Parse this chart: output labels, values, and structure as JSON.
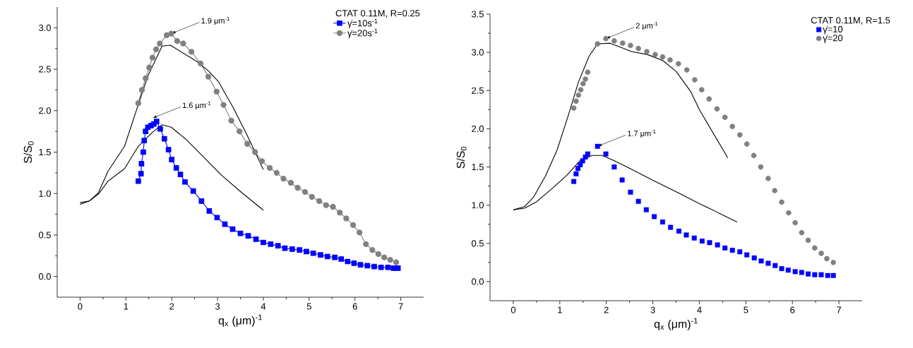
{
  "chart_data": [
    {
      "type": "line",
      "xlabel": "q$_{x}$ (μm)$^{-1}$",
      "ylabel": "S/S$_{0}$",
      "legend_title": "CTAT 0.11M, R=0.25",
      "legend": "top right",
      "grid": false,
      "line_style": "solid",
      "xlim": [
        -0.5,
        7.5
      ],
      "xticks": [
        0,
        1,
        2,
        3,
        4,
        5,
        6,
        7
      ],
      "ylim": [
        -0.25,
        3.25
      ],
      "yticks": [
        {
          "value": 0,
          "label": "0.0"
        },
        0.5,
        {
          "value": 1,
          "label": "1.0"
        },
        1.5,
        {
          "value": 2,
          "label": "2.0"
        },
        2.5,
        {
          "value": 3,
          "label": "3.0"
        }
      ],
      "annotations": [
        {
          "text": "1.9 μm$^{-1}$",
          "x": 1.99,
          "y": 2.93
        },
        {
          "text": "1.6 μm$^{-1}$",
          "x": 1.58,
          "y": 1.91
        }
      ],
      "series": [
        {
          "name": "γ̇=10s$^{-1}$",
          "color": "#0000ff",
          "marker": "square",
          "x": [
            1.27,
            1.33,
            1.34,
            1.38,
            1.4,
            1.43,
            1.48,
            1.55,
            1.61,
            1.67,
            1.75,
            1.84,
            1.93,
            2.0,
            2.1,
            2.19,
            2.29,
            2.47,
            2.65,
            2.82,
            2.99,
            3.16,
            3.33,
            3.5,
            3.67,
            3.84,
            4.0,
            4.16,
            4.32,
            4.47,
            4.63,
            4.79,
            4.94,
            5.09,
            5.25,
            5.4,
            5.56,
            5.7,
            5.84,
            5.98,
            6.12,
            6.27,
            6.42,
            6.57,
            6.72,
            6.84,
            6.94
          ],
          "values": [
            1.15,
            1.24,
            1.36,
            1.5,
            1.64,
            1.75,
            1.8,
            1.82,
            1.84,
            1.87,
            1.78,
            1.66,
            1.53,
            1.41,
            1.31,
            1.23,
            1.14,
            1.03,
            0.91,
            0.79,
            0.71,
            0.63,
            0.57,
            0.52,
            0.49,
            0.45,
            0.41,
            0.39,
            0.37,
            0.34,
            0.33,
            0.32,
            0.3,
            0.28,
            0.26,
            0.24,
            0.23,
            0.21,
            0.18,
            0.16,
            0.14,
            0.13,
            0.12,
            0.11,
            0.11,
            0.1,
            0.1
          ]
        },
        {
          "name": "γ̇=20s$^{-1}$",
          "color": "#808080",
          "marker": "circle",
          "x": [
            1.27,
            1.35,
            1.43,
            1.51,
            1.58,
            1.66,
            1.74,
            1.89,
            1.99,
            2.12,
            2.25,
            2.43,
            2.63,
            2.8,
            2.98,
            3.13,
            3.3,
            3.48,
            3.65,
            3.82,
            3.97,
            4.14,
            4.29,
            4.44,
            4.6,
            4.75,
            4.91,
            5.06,
            5.22,
            5.37,
            5.52,
            5.67,
            5.81,
            5.96,
            6.1,
            6.24,
            6.38,
            6.51,
            6.64,
            6.77,
            6.9
          ],
          "values": [
            2.09,
            2.25,
            2.39,
            2.52,
            2.64,
            2.74,
            2.81,
            2.91,
            2.93,
            2.84,
            2.81,
            2.71,
            2.57,
            2.41,
            2.23,
            2.07,
            1.88,
            1.75,
            1.6,
            1.5,
            1.39,
            1.31,
            1.25,
            1.18,
            1.13,
            1.07,
            1.02,
            0.96,
            0.91,
            0.86,
            0.84,
            0.77,
            0.7,
            0.62,
            0.53,
            0.39,
            0.32,
            0.27,
            0.23,
            0.2,
            0.17
          ]
        },
        {
          "type": "line",
          "color": "#000000",
          "marker": "none",
          "x": [
            0,
            0.2,
            0.4,
            0.61,
            0.97,
            1.25,
            1.48,
            1.79,
            1.97,
            2.56,
            2.82,
            3.02,
            3.33,
            3.64,
            4.0
          ],
          "values": [
            0.87,
            0.91,
            1.01,
            1.27,
            1.57,
            2.04,
            2.42,
            2.78,
            2.79,
            2.59,
            2.47,
            2.35,
            2.05,
            1.71,
            1.29
          ]
        },
        {
          "type": "line",
          "color": "#000000",
          "marker": "none",
          "x": [
            0,
            0.2,
            0.41,
            0.61,
            0.97,
            1.27,
            1.58,
            1.79,
            1.99,
            2.3,
            2.66,
            3.07,
            3.53,
            4.0
          ],
          "values": [
            0.89,
            0.91,
            1.0,
            1.15,
            1.3,
            1.57,
            1.74,
            1.83,
            1.8,
            1.66,
            1.46,
            1.23,
            1.01,
            0.8
          ]
        }
      ]
    },
    {
      "type": "scatter",
      "xlabel": "q$_{x}$ (μm)$^{-1}$",
      "ylabel": "S/S$_{0}$",
      "legend_title": "CTAT 0.11M, R=1.5",
      "legend": "top right",
      "grid": false,
      "line_style": "solid",
      "xlim": [
        -0.5,
        7.5
      ],
      "xticks": [
        0,
        1,
        2,
        3,
        4,
        5,
        6,
        7
      ],
      "ylim": [
        -0.25,
        3.5
      ],
      "yticks": [
        {
          "value": 0,
          "label": "0.0"
        },
        0.5,
        {
          "value": 1,
          "label": "1.0"
        },
        1.5,
        {
          "value": 2,
          "label": "2.0"
        },
        2.5,
        {
          "value": 3,
          "label": "3.0"
        },
        3.5
      ],
      "annotations": [
        {
          "text": "2 μm$^{-1}$",
          "x": 1.99,
          "y": 3.18
        },
        {
          "text": "1.7 μm$^{-1}$",
          "x": 1.81,
          "y": 1.77
        }
      ],
      "series": [
        {
          "name": "γ̇=10",
          "color": "#0000ff",
          "marker": "square",
          "x": [
            1.3,
            1.35,
            1.39,
            1.44,
            1.49,
            1.55,
            1.6,
            1.81,
            1.99,
            2.17,
            2.34,
            2.52,
            2.69,
            2.86,
            3.03,
            3.21,
            3.38,
            3.56,
            3.72,
            3.89,
            4.06,
            4.22,
            4.39,
            4.55,
            4.71,
            4.87,
            5.02,
            5.18,
            5.33,
            5.48,
            5.63,
            5.77,
            5.91,
            6.06,
            6.2,
            6.34,
            6.48,
            6.62,
            6.76,
            6.88
          ],
          "values": [
            1.31,
            1.41,
            1.48,
            1.53,
            1.58,
            1.63,
            1.67,
            1.77,
            1.67,
            1.5,
            1.33,
            1.17,
            1.05,
            0.94,
            0.85,
            0.78,
            0.71,
            0.66,
            0.61,
            0.57,
            0.53,
            0.51,
            0.48,
            0.44,
            0.41,
            0.39,
            0.35,
            0.31,
            0.27,
            0.24,
            0.21,
            0.17,
            0.15,
            0.13,
            0.12,
            0.1,
            0.09,
            0.09,
            0.08,
            0.08
          ]
        },
        {
          "name": "γ̇=20",
          "color": "#808080",
          "marker": "circle",
          "x": [
            1.3,
            1.35,
            1.4,
            1.45,
            1.5,
            1.55,
            1.6,
            1.81,
            1.99,
            2.17,
            2.35,
            2.52,
            2.69,
            2.87,
            3.05,
            3.21,
            3.37,
            3.55,
            3.73,
            3.9,
            4.05,
            4.21,
            4.38,
            4.55,
            4.71,
            4.87,
            5.02,
            5.17,
            5.32,
            5.48,
            5.62,
            5.77,
            5.92,
            6.06,
            6.2,
            6.34,
            6.48,
            6.62,
            6.74,
            6.88
          ],
          "values": [
            2.27,
            2.36,
            2.44,
            2.51,
            2.59,
            2.65,
            2.74,
            3.11,
            3.18,
            3.15,
            3.12,
            3.09,
            3.05,
            3.01,
            2.97,
            2.94,
            2.9,
            2.85,
            2.77,
            2.64,
            2.51,
            2.39,
            2.26,
            2.15,
            2.03,
            1.92,
            1.8,
            1.65,
            1.5,
            1.35,
            1.19,
            1.04,
            0.9,
            0.77,
            0.64,
            0.54,
            0.44,
            0.37,
            0.3,
            0.25
          ]
        },
        {
          "type": "line",
          "color": "#000000",
          "marker": "none",
          "x": [
            0,
            0.24,
            0.44,
            0.69,
            0.94,
            1.17,
            1.4,
            1.63,
            1.81,
            2.08,
            2.29,
            2.54,
            2.89,
            3.22,
            3.5,
            3.81,
            4.01,
            4.61
          ],
          "values": [
            0.94,
            0.98,
            1.11,
            1.38,
            1.72,
            2.15,
            2.61,
            2.95,
            3.11,
            3.12,
            3.07,
            3.01,
            2.97,
            2.89,
            2.75,
            2.49,
            2.24,
            1.62
          ]
        },
        {
          "type": "line",
          "color": "#000000",
          "marker": "none",
          "x": [
            0,
            0.24,
            0.49,
            0.82,
            1.15,
            1.43,
            1.7,
            1.91,
            2.14,
            2.54,
            3.05,
            3.55,
            4.0,
            4.21,
            4.81
          ],
          "values": [
            0.94,
            0.96,
            1.04,
            1.21,
            1.39,
            1.58,
            1.65,
            1.65,
            1.59,
            1.47,
            1.31,
            1.16,
            1.02,
            0.96,
            0.78
          ]
        }
      ]
    }
  ]
}
